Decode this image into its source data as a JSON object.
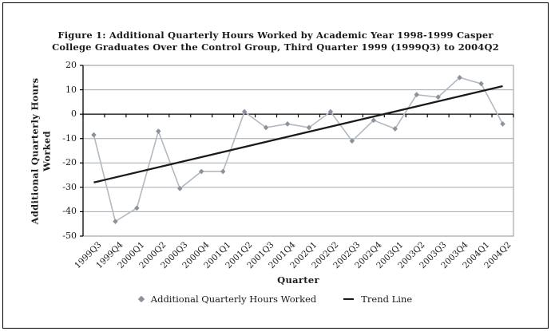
{
  "figure": {
    "title_line1": "Figure 1: Additional Quarterly Hours Worked by Academic Year 1998-1999 Casper",
    "title_line2": "College Graduates Over the Control Group, Third Quarter 1999 (1999Q3) to 2004Q2"
  },
  "chart_data": {
    "type": "line",
    "title": "Figure 1: Additional Quarterly Hours Worked by Academic Year 1998-1999 Casper College Graduates Over the Control Group, Third Quarter 1999 (1999Q3) to 2004Q2",
    "xlabel": "Quarter",
    "ylabel": "Additional Quarterly Hours Worked",
    "ylim": [
      -50,
      20
    ],
    "yticks": [
      20,
      10,
      0,
      -10,
      -20,
      -30,
      -40,
      -50
    ],
    "grid": "horizontal",
    "legend_position": "bottom-center",
    "categories": [
      "1999Q3",
      "1999Q4",
      "2000Q1",
      "2000Q2",
      "2000Q3",
      "2000Q4",
      "2001Q1",
      "2001Q2",
      "2001Q3",
      "2001Q4",
      "2002Q1",
      "2002Q2",
      "2002Q3",
      "2002Q4",
      "2003Q1",
      "2003Q2",
      "2003Q3",
      "2003Q4",
      "2004Q1",
      "2004Q2"
    ],
    "series": [
      {
        "name": "Additional Quarterly Hours Worked",
        "type": "line-with-diamond-markers",
        "values": [
          -8.5,
          -44,
          -38.5,
          -7,
          -30.5,
          -23.5,
          -23.5,
          1,
          -5.5,
          -4,
          -5.5,
          1,
          -11,
          -2.5,
          -6,
          8,
          7,
          15,
          12.5,
          -4
        ]
      },
      {
        "name": "Trend Line",
        "type": "trend-line",
        "start_value": -28,
        "end_value": 11.5
      }
    ],
    "colors": {
      "series_line": "#b3b9c1",
      "marker": "#8b929b",
      "trend": "#1a1a1a",
      "grid": "#a3a9ae",
      "axis": "#000000"
    }
  }
}
